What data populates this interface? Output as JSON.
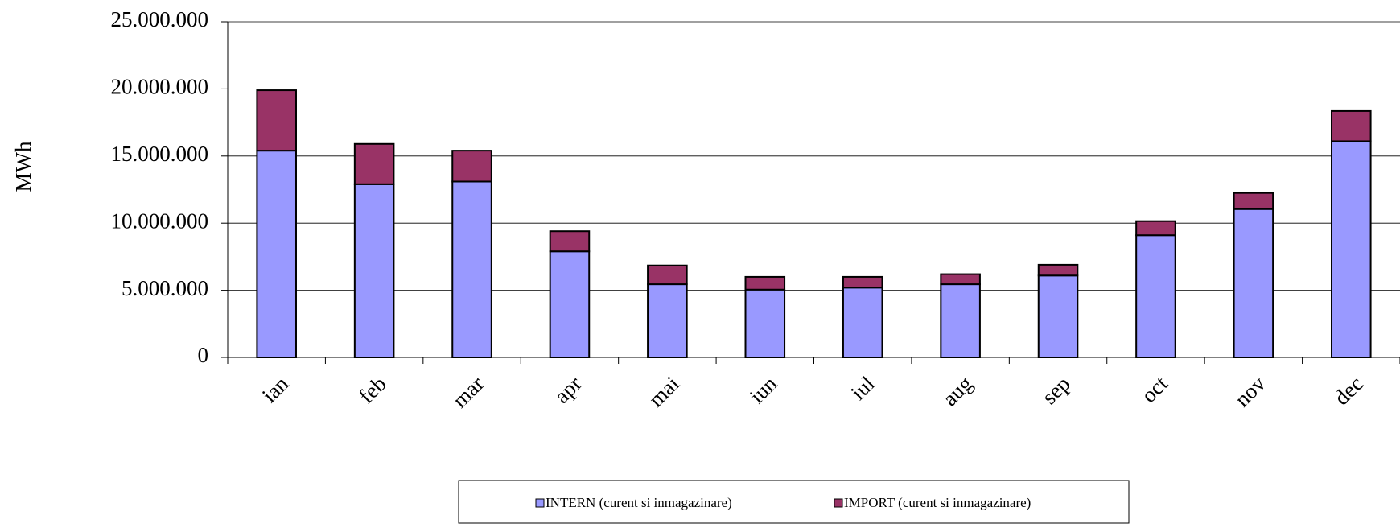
{
  "chart_data": {
    "type": "stacked_bar",
    "y_label": "MWh",
    "categories": [
      "ian",
      "feb",
      "mar",
      "apr",
      "mai",
      "iun",
      "iul",
      "aug",
      "sep",
      "oct",
      "nov",
      "dec"
    ],
    "series": [
      {
        "name": "INTERN (curent si inmagazinare)",
        "color": "#9999ff",
        "values": [
          15400000,
          12900000,
          13100000,
          7900000,
          5450000,
          5050000,
          5200000,
          5450000,
          6100000,
          9100000,
          11050000,
          16100000
        ]
      },
      {
        "name": "IMPORT (curent si inmagazinare)",
        "color": "#993366",
        "values": [
          4500000,
          3000000,
          2300000,
          1500000,
          1400000,
          950000,
          800000,
          750000,
          800000,
          1050000,
          1200000,
          2250000
        ]
      }
    ],
    "ylim": [
      0,
      25000000
    ],
    "yticks": [
      0,
      {
        "value": 5000000,
        "label": "5.000.000"
      },
      {
        "value": 10000000,
        "label": "10.000.000"
      },
      {
        "value": 15000000,
        "label": "15.000.000"
      },
      {
        "value": 20000000,
        "label": "20.000.000"
      },
      {
        "value": 25000000,
        "label": "25.000.000"
      }
    ],
    "grid": true,
    "legend": "bottom"
  }
}
